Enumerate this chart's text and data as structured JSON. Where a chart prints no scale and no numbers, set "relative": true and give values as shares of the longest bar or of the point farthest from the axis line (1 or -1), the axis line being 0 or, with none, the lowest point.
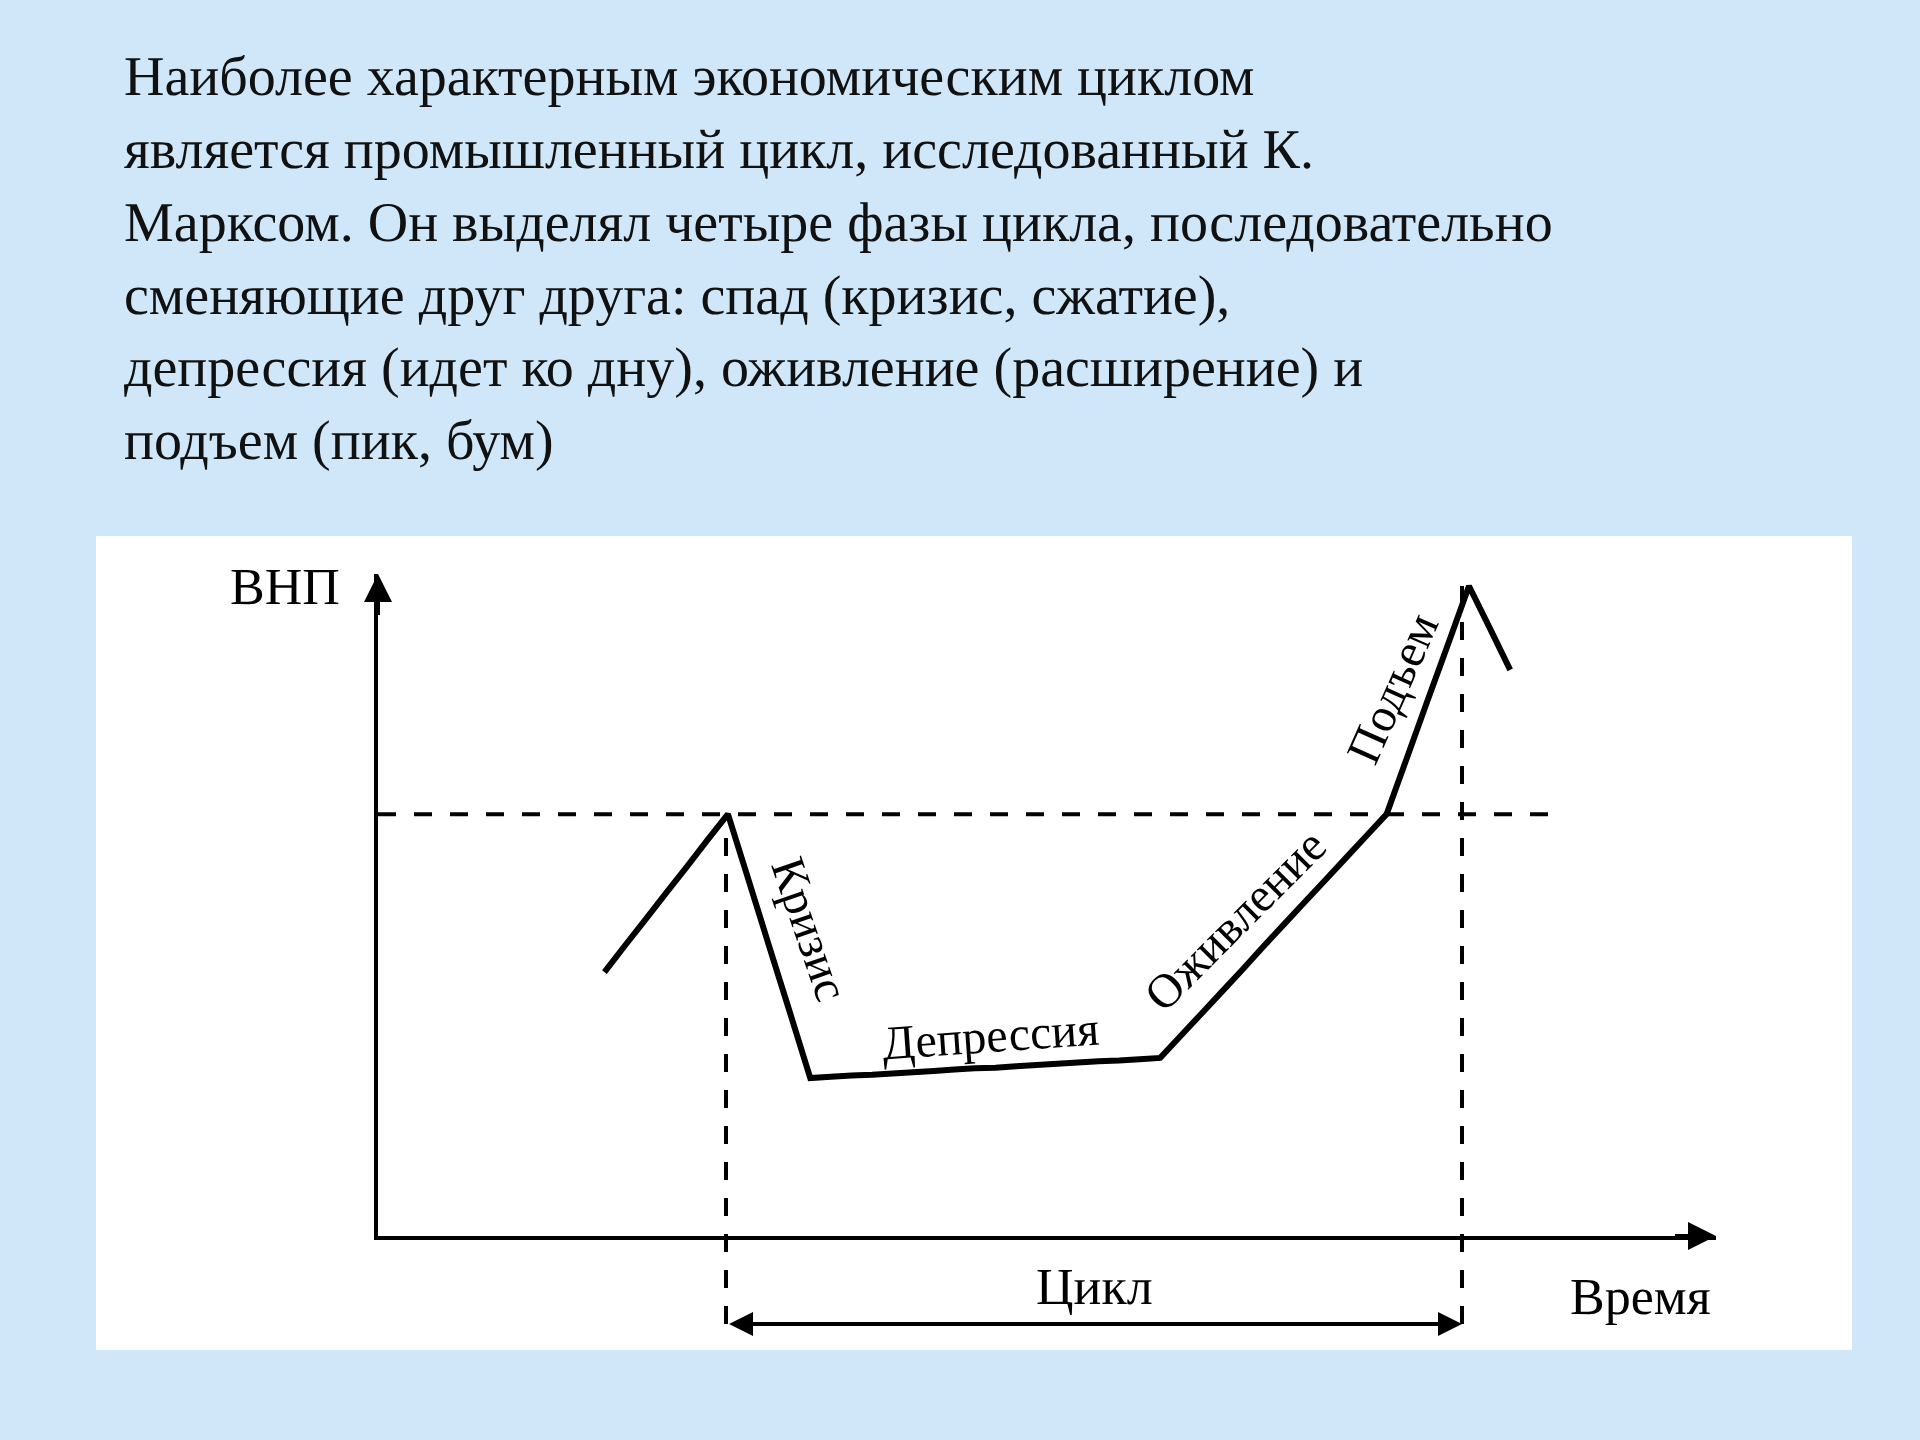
{
  "chart_data": {
    "type": "line",
    "title": "Наиболее характерным экономическим циклом\nявляется промышленный цикл, исследованный К.\nМарксом. Он выделял четыре фазы цикла, последовательно\nсменяющие друг друга: спад (кризис, сжатие),\nдепрессия (идет ко дну), оживление (расширение) и\nподъем (пик, бум)",
    "xlabel": "Время",
    "ylabel": "ВНП",
    "relative": true,
    "categories": [
      null,
      null,
      null,
      null,
      null,
      null,
      null,
      null,
      null,
      null,
      null,
      null,
      null,
      null,
      null,
      null,
      null,
      null,
      null,
      null,
      null,
      null,
      null,
      null,
      null,
      null,
      null,
      null,
      null,
      null,
      null,
      null,
      null,
      null,
      null,
      null,
      null,
      null,
      null,
      null,
      null,
      null,
      null,
      null,
      null,
      null,
      null,
      null,
      null,
      null,
      null,
      null,
      null,
      null,
      null,
      null,
      null,
      null,
      null,
      null,
      null,
      null,
      null,
      null,
      null,
      null
    ],
    "series": [
      {
        "color": "#000000",
        "values": [
          null,
          null,
          null,
          null,
          null,
          null,
          null,
          null,
          null,
          null,
          null,
          0.406,
          0.447,
          0.487,
          0.528,
          0.568,
          0.609,
          0.649,
          0.548,
          0.446,
          0.345,
          0.243,
          0.245,
          0.247,
          0.248,
          0.25,
          0.252,
          0.254,
          0.256,
          0.258,
          0.259,
          0.261,
          0.263,
          0.265,
          0.267,
          0.269,
          0.27,
          0.272,
          0.274,
          0.308,
          0.342,
          0.376,
          0.41,
          0.445,
          0.479,
          0.513,
          0.547,
          0.581,
          0.615,
          0.649,
          0.737,
          0.825,
          0.912,
          1.0,
          0.936,
          0.871,
          null,
          null,
          null,
          null,
          null,
          null,
          null,
          null,
          null,
          null
        ]
      }
    ],
    "ref_lines": [
      {
        "axis": "y",
        "value": 0.649,
        "line_style": "dashed",
        "color": "#000000"
      }
    ],
    "annotations": [
      "Кризис",
      "Депрессия",
      "Оживление",
      "Подъем",
      "Цикл"
    ],
    "marker": "none",
    "line_style": "solid"
  }
}
